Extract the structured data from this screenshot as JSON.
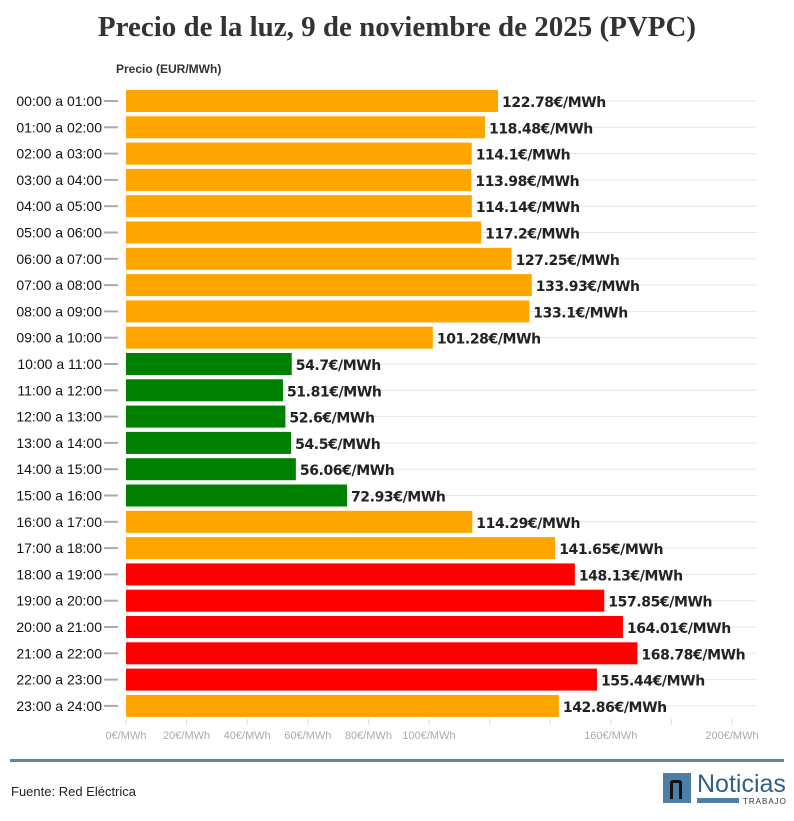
{
  "title": "Precio de la luz, 9 de noviembre de 2025 (PVPC)",
  "chart_data": {
    "type": "bar",
    "orientation": "horizontal",
    "ylabel": "Precio (EUR/MWh)",
    "categories": [
      "00:00 a 01:00",
      "01:00 a 02:00",
      "02:00 a 03:00",
      "03:00 a 04:00",
      "04:00 a 05:00",
      "05:00 a 06:00",
      "06:00 a 07:00",
      "07:00 a 08:00",
      "08:00 a 09:00",
      "09:00 a 10:00",
      "10:00 a 11:00",
      "11:00 a 12:00",
      "12:00 a 13:00",
      "13:00 a 14:00",
      "14:00 a 15:00",
      "15:00 a 16:00",
      "16:00 a 17:00",
      "17:00 a 18:00",
      "18:00 a 19:00",
      "19:00 a 20:00",
      "20:00 a 21:00",
      "21:00 a 22:00",
      "22:00 a 23:00",
      "23:00 a 24:00"
    ],
    "values": [
      122.78,
      118.48,
      114.1,
      113.98,
      114.14,
      117.2,
      127.25,
      133.93,
      133.1,
      101.28,
      54.7,
      51.81,
      52.6,
      54.5,
      56.06,
      72.93,
      114.29,
      141.65,
      148.13,
      157.85,
      164.01,
      168.78,
      155.44,
      142.86
    ],
    "data_labels": [
      "122.78€/MWh",
      "118.48€/MWh",
      "114.1€/MWh",
      "113.98€/MWh",
      "114.14€/MWh",
      "117.2€/MWh",
      "127.25€/MWh",
      "133.93€/MWh",
      "133.1€/MWh",
      "101.28€/MWh",
      "54.7€/MWh",
      "51.81€/MWh",
      "52.6€/MWh",
      "54.5€/MWh",
      "56.06€/MWh",
      "72.93€/MWh",
      "114.29€/MWh",
      "141.65€/MWh",
      "148.13€/MWh",
      "157.85€/MWh",
      "164.01€/MWh",
      "168.78€/MWh",
      "155.44€/MWh",
      "142.86€/MWh"
    ],
    "colors": [
      "#FFA500",
      "#FFA500",
      "#FFA500",
      "#FFA500",
      "#FFA500",
      "#FFA500",
      "#FFA500",
      "#FFA500",
      "#FFA500",
      "#FFA500",
      "#008000",
      "#008000",
      "#008000",
      "#008000",
      "#008000",
      "#008000",
      "#FFA500",
      "#FFA500",
      "#FF0000",
      "#FF0000",
      "#FF0000",
      "#FF0000",
      "#FF0000",
      "#FFA500"
    ],
    "xlim": [
      0,
      210
    ],
    "xticks": [
      0,
      20,
      40,
      60,
      80,
      100,
      120,
      140,
      160,
      180,
      200
    ],
    "xtick_labels": {
      "0": "0€/MWh",
      "20": "20€/MWh",
      "40": "40€/MWh",
      "60": "60€/MWh",
      "80": "80€/MWh",
      "100": "100€/MWh",
      "160": "160€/MWh",
      "200": "200€/MWh"
    },
    "grid": true
  },
  "footer": {
    "source": "Fuente: Red Eléctrica",
    "logo_text": "Noticias",
    "logo_sub": "TRABAJO"
  }
}
